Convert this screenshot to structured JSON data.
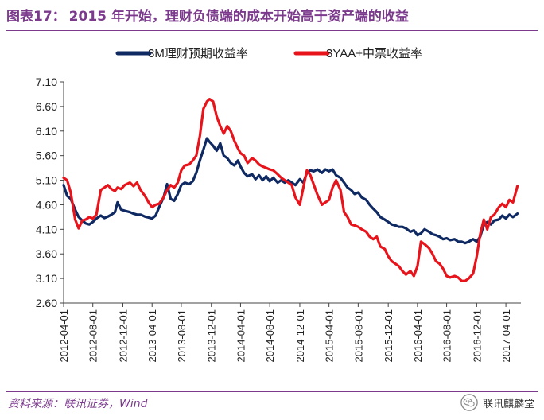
{
  "header": {
    "figure_label": "图表17：",
    "title": "2015 年开始，理财负债端的成本开始高于资产端的收益"
  },
  "footer": {
    "source": "资料来源：联讯证券，Wind",
    "watermark": "联讯麒麟堂",
    "watermark_icon": "wechat-icon"
  },
  "chart_data": {
    "type": "line",
    "title": "",
    "xlabel": "",
    "ylabel": "",
    "ylim": [
      2.6,
      7.1
    ],
    "yticks": [
      "2.60",
      "3.10",
      "3.60",
      "4.10",
      "4.60",
      "5.10",
      "5.60",
      "6.10",
      "6.60",
      "7.10"
    ],
    "xlim": [
      2012.25,
      2017.42
    ],
    "xticks": [
      {
        "label": "2012-04-01",
        "x": 2012.25
      },
      {
        "label": "2012-08-01",
        "x": 2012.58
      },
      {
        "label": "2012-12-01",
        "x": 2012.92
      },
      {
        "label": "2013-04-01",
        "x": 2013.25
      },
      {
        "label": "2013-08-01",
        "x": 2013.58
      },
      {
        "label": "2013-12-01",
        "x": 2013.92
      },
      {
        "label": "2014-04-01",
        "x": 2014.25
      },
      {
        "label": "2014-08-01",
        "x": 2014.58
      },
      {
        "label": "2014-12-01",
        "x": 2014.92
      },
      {
        "label": "2015-04-01",
        "x": 2015.25
      },
      {
        "label": "2015-08-01",
        "x": 2015.58
      },
      {
        "label": "2015-12-01",
        "x": 2015.92
      },
      {
        "label": "2016-04-01",
        "x": 2016.25
      },
      {
        "label": "2016-08-01",
        "x": 2016.58
      },
      {
        "label": "2016-12-01",
        "x": 2016.92
      },
      {
        "label": "2017-04-01",
        "x": 2017.25
      }
    ],
    "grid": false,
    "legend_position": "top",
    "series": [
      {
        "name": "3M理财预期收益率",
        "color": "#0f2a63",
        "points": [
          [
            2012.25,
            5.0
          ],
          [
            2012.29,
            4.78
          ],
          [
            2012.33,
            4.72
          ],
          [
            2012.38,
            4.5
          ],
          [
            2012.42,
            4.35
          ],
          [
            2012.46,
            4.28
          ],
          [
            2012.5,
            4.22
          ],
          [
            2012.54,
            4.2
          ],
          [
            2012.58,
            4.25
          ],
          [
            2012.62,
            4.32
          ],
          [
            2012.67,
            4.38
          ],
          [
            2012.71,
            4.33
          ],
          [
            2012.75,
            4.36
          ],
          [
            2012.79,
            4.4
          ],
          [
            2012.83,
            4.45
          ],
          [
            2012.86,
            4.65
          ],
          [
            2012.9,
            4.5
          ],
          [
            2012.94,
            4.48
          ],
          [
            2013.0,
            4.45
          ],
          [
            2013.04,
            4.42
          ],
          [
            2013.08,
            4.4
          ],
          [
            2013.12,
            4.4
          ],
          [
            2013.17,
            4.36
          ],
          [
            2013.21,
            4.34
          ],
          [
            2013.25,
            4.32
          ],
          [
            2013.29,
            4.38
          ],
          [
            2013.33,
            4.55
          ],
          [
            2013.38,
            4.75
          ],
          [
            2013.42,
            5.02
          ],
          [
            2013.46,
            4.72
          ],
          [
            2013.5,
            4.68
          ],
          [
            2013.54,
            4.82
          ],
          [
            2013.58,
            5.0
          ],
          [
            2013.62,
            5.05
          ],
          [
            2013.67,
            5.02
          ],
          [
            2013.71,
            5.08
          ],
          [
            2013.75,
            5.25
          ],
          [
            2013.79,
            5.5
          ],
          [
            2013.83,
            5.72
          ],
          [
            2013.87,
            5.95
          ],
          [
            2013.9,
            5.88
          ],
          [
            2013.94,
            5.8
          ],
          [
            2013.98,
            5.7
          ],
          [
            2014.02,
            5.85
          ],
          [
            2014.06,
            5.6
          ],
          [
            2014.1,
            5.55
          ],
          [
            2014.14,
            5.45
          ],
          [
            2014.18,
            5.4
          ],
          [
            2014.22,
            5.5
          ],
          [
            2014.25,
            5.38
          ],
          [
            2014.29,
            5.25
          ],
          [
            2014.33,
            5.18
          ],
          [
            2014.38,
            5.22
          ],
          [
            2014.42,
            5.12
          ],
          [
            2014.46,
            5.2
          ],
          [
            2014.5,
            5.1
          ],
          [
            2014.54,
            5.18
          ],
          [
            2014.58,
            5.08
          ],
          [
            2014.62,
            5.15
          ],
          [
            2014.67,
            5.05
          ],
          [
            2014.71,
            5.1
          ],
          [
            2014.75,
            5.05
          ],
          [
            2014.79,
            5.1
          ],
          [
            2014.83,
            5.05
          ],
          [
            2014.87,
            5.0
          ],
          [
            2014.92,
            5.12
          ],
          [
            2014.96,
            5.05
          ],
          [
            2015.0,
            5.25
          ],
          [
            2015.04,
            5.3
          ],
          [
            2015.08,
            5.28
          ],
          [
            2015.12,
            5.32
          ],
          [
            2015.17,
            5.25
          ],
          [
            2015.21,
            5.32
          ],
          [
            2015.25,
            5.28
          ],
          [
            2015.29,
            5.32
          ],
          [
            2015.33,
            5.2
          ],
          [
            2015.38,
            5.15
          ],
          [
            2015.42,
            5.05
          ],
          [
            2015.46,
            4.95
          ],
          [
            2015.5,
            4.9
          ],
          [
            2015.54,
            4.82
          ],
          [
            2015.58,
            4.85
          ],
          [
            2015.62,
            4.75
          ],
          [
            2015.67,
            4.7
          ],
          [
            2015.71,
            4.6
          ],
          [
            2015.75,
            4.52
          ],
          [
            2015.79,
            4.45
          ],
          [
            2015.83,
            4.35
          ],
          [
            2015.88,
            4.3
          ],
          [
            2015.92,
            4.25
          ],
          [
            2015.96,
            4.2
          ],
          [
            2016.0,
            4.18
          ],
          [
            2016.04,
            4.15
          ],
          [
            2016.08,
            4.15
          ],
          [
            2016.12,
            4.12
          ],
          [
            2016.17,
            4.05
          ],
          [
            2016.21,
            4.08
          ],
          [
            2016.25,
            3.98
          ],
          [
            2016.29,
            4.02
          ],
          [
            2016.33,
            4.1
          ],
          [
            2016.38,
            4.05
          ],
          [
            2016.42,
            4.0
          ],
          [
            2016.46,
            3.98
          ],
          [
            2016.5,
            3.95
          ],
          [
            2016.54,
            3.9
          ],
          [
            2016.58,
            3.92
          ],
          [
            2016.62,
            3.88
          ],
          [
            2016.67,
            3.9
          ],
          [
            2016.71,
            3.85
          ],
          [
            2016.75,
            3.85
          ],
          [
            2016.79,
            3.82
          ],
          [
            2016.83,
            3.85
          ],
          [
            2016.88,
            3.9
          ],
          [
            2016.92,
            3.85
          ],
          [
            2016.96,
            3.95
          ],
          [
            2017.0,
            4.2
          ],
          [
            2017.04,
            4.25
          ],
          [
            2017.08,
            4.2
          ],
          [
            2017.12,
            4.28
          ],
          [
            2017.17,
            4.3
          ],
          [
            2017.21,
            4.38
          ],
          [
            2017.25,
            4.32
          ],
          [
            2017.29,
            4.4
          ],
          [
            2017.33,
            4.35
          ],
          [
            2017.38,
            4.42
          ]
        ]
      },
      {
        "name": "3YAA+中票收益率",
        "color": "#e8141c",
        "points": [
          [
            2012.25,
            5.15
          ],
          [
            2012.29,
            5.1
          ],
          [
            2012.33,
            4.85
          ],
          [
            2012.38,
            4.3
          ],
          [
            2012.42,
            4.12
          ],
          [
            2012.46,
            4.28
          ],
          [
            2012.5,
            4.3
          ],
          [
            2012.54,
            4.35
          ],
          [
            2012.58,
            4.32
          ],
          [
            2012.62,
            4.4
          ],
          [
            2012.67,
            4.9
          ],
          [
            2012.71,
            4.95
          ],
          [
            2012.75,
            5.0
          ],
          [
            2012.79,
            4.92
          ],
          [
            2012.83,
            4.88
          ],
          [
            2012.86,
            4.95
          ],
          [
            2012.9,
            4.92
          ],
          [
            2012.94,
            5.0
          ],
          [
            2013.0,
            5.05
          ],
          [
            2013.04,
            4.98
          ],
          [
            2013.08,
            5.05
          ],
          [
            2013.12,
            4.9
          ],
          [
            2013.17,
            4.78
          ],
          [
            2013.21,
            4.65
          ],
          [
            2013.25,
            4.55
          ],
          [
            2013.29,
            4.6
          ],
          [
            2013.33,
            4.62
          ],
          [
            2013.38,
            4.75
          ],
          [
            2013.42,
            4.9
          ],
          [
            2013.46,
            5.0
          ],
          [
            2013.5,
            4.95
          ],
          [
            2013.54,
            5.05
          ],
          [
            2013.58,
            5.3
          ],
          [
            2013.62,
            5.4
          ],
          [
            2013.67,
            5.42
          ],
          [
            2013.71,
            5.5
          ],
          [
            2013.75,
            5.6
          ],
          [
            2013.79,
            6.0
          ],
          [
            2013.83,
            6.55
          ],
          [
            2013.87,
            6.7
          ],
          [
            2013.9,
            6.75
          ],
          [
            2013.94,
            6.7
          ],
          [
            2013.98,
            6.4
          ],
          [
            2014.02,
            6.2
          ],
          [
            2014.06,
            6.05
          ],
          [
            2014.1,
            6.2
          ],
          [
            2014.14,
            6.1
          ],
          [
            2014.18,
            5.9
          ],
          [
            2014.22,
            5.75
          ],
          [
            2014.25,
            5.65
          ],
          [
            2014.29,
            5.6
          ],
          [
            2014.33,
            5.45
          ],
          [
            2014.38,
            5.55
          ],
          [
            2014.42,
            5.5
          ],
          [
            2014.46,
            5.42
          ],
          [
            2014.5,
            5.38
          ],
          [
            2014.54,
            5.35
          ],
          [
            2014.58,
            5.32
          ],
          [
            2014.62,
            5.3
          ],
          [
            2014.67,
            5.22
          ],
          [
            2014.71,
            5.15
          ],
          [
            2014.75,
            5.1
          ],
          [
            2014.79,
            5.05
          ],
          [
            2014.83,
            5.0
          ],
          [
            2014.87,
            4.75
          ],
          [
            2014.92,
            4.6
          ],
          [
            2014.96,
            4.95
          ],
          [
            2015.0,
            5.3
          ],
          [
            2015.04,
            5.2
          ],
          [
            2015.08,
            5.0
          ],
          [
            2015.12,
            4.8
          ],
          [
            2015.17,
            4.6
          ],
          [
            2015.21,
            4.65
          ],
          [
            2015.25,
            4.7
          ],
          [
            2015.29,
            4.95
          ],
          [
            2015.33,
            5.1
          ],
          [
            2015.38,
            4.9
          ],
          [
            2015.42,
            4.45
          ],
          [
            2015.46,
            4.35
          ],
          [
            2015.5,
            4.2
          ],
          [
            2015.54,
            4.18
          ],
          [
            2015.58,
            4.15
          ],
          [
            2015.62,
            4.1
          ],
          [
            2015.67,
            4.05
          ],
          [
            2015.71,
            3.95
          ],
          [
            2015.75,
            3.9
          ],
          [
            2015.79,
            3.95
          ],
          [
            2015.83,
            3.75
          ],
          [
            2015.88,
            3.7
          ],
          [
            2015.92,
            3.55
          ],
          [
            2015.96,
            3.45
          ],
          [
            2016.0,
            3.4
          ],
          [
            2016.04,
            3.35
          ],
          [
            2016.08,
            3.25
          ],
          [
            2016.12,
            3.18
          ],
          [
            2016.17,
            3.25
          ],
          [
            2016.21,
            3.15
          ],
          [
            2016.25,
            3.35
          ],
          [
            2016.29,
            3.85
          ],
          [
            2016.33,
            3.8
          ],
          [
            2016.38,
            3.72
          ],
          [
            2016.42,
            3.6
          ],
          [
            2016.46,
            3.45
          ],
          [
            2016.5,
            3.4
          ],
          [
            2016.54,
            3.3
          ],
          [
            2016.58,
            3.15
          ],
          [
            2016.62,
            3.12
          ],
          [
            2016.67,
            3.15
          ],
          [
            2016.71,
            3.12
          ],
          [
            2016.75,
            3.05
          ],
          [
            2016.79,
            3.05
          ],
          [
            2016.83,
            3.1
          ],
          [
            2016.88,
            3.2
          ],
          [
            2016.92,
            3.55
          ],
          [
            2016.96,
            4.0
          ],
          [
            2017.0,
            4.3
          ],
          [
            2017.04,
            4.1
          ],
          [
            2017.08,
            4.35
          ],
          [
            2017.12,
            4.4
          ],
          [
            2017.17,
            4.55
          ],
          [
            2017.21,
            4.62
          ],
          [
            2017.25,
            4.55
          ],
          [
            2017.29,
            4.7
          ],
          [
            2017.33,
            4.65
          ],
          [
            2017.38,
            4.98
          ]
        ]
      }
    ]
  }
}
